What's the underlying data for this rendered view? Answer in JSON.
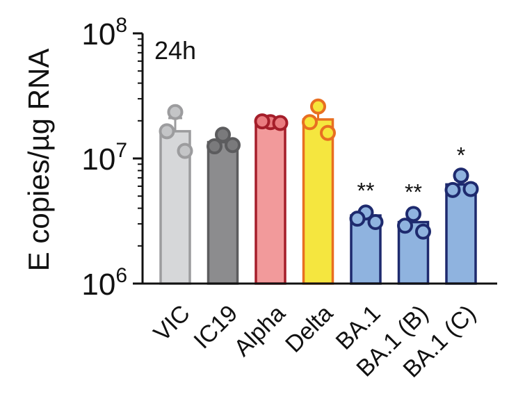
{
  "chart_data": {
    "type": "bar",
    "panel_label": "24h",
    "ylabel": "E copies/µg RNA",
    "yscale": "log",
    "ylim": [
      1000000,
      100000000
    ],
    "yticks": [
      {
        "value": 1000000,
        "base": "10",
        "exp": "6"
      },
      {
        "value": 10000000,
        "base": "10",
        "exp": "7"
      },
      {
        "value": 100000000,
        "base": "10",
        "exp": "8"
      }
    ],
    "categories": [
      "VIC",
      "IC19",
      "Alpha",
      "Delta",
      "BA.1",
      "BA.1 (B)",
      "BA.1 (C)"
    ],
    "values": [
      16500000,
      13500000,
      19500000,
      20500000,
      3500000,
      3100000,
      6200000
    ],
    "errors": [
      4500000,
      2200000,
      500000,
      5500000,
      300000,
      600000,
      600000
    ],
    "points": [
      [
        23500000,
        16500000,
        11500000
      ],
      [
        15500000,
        12500000,
        12800000
      ],
      [
        19500000,
        19800000,
        19200000
      ],
      [
        26000000,
        19500000,
        16000000
      ],
      [
        3700000,
        3300000,
        3100000
      ],
      [
        3600000,
        2900000,
        2600000
      ],
      [
        7300000,
        5600000,
        5700000
      ]
    ],
    "significance": [
      "",
      "",
      "",
      "",
      "**",
      "**",
      "*"
    ],
    "bar_colors": [
      "#d6d7d9",
      "#8c8c8e",
      "#f29a9b",
      "#f5e63f",
      "#8fb3df",
      "#8fb3df",
      "#8fb3df"
    ],
    "edge_colors": [
      "#9c9c9e",
      "#5c5c5e",
      "#a51e2a",
      "#e86f21",
      "#1e2a6e",
      "#1e2a6e",
      "#1e2a6e"
    ],
    "point_fill": [
      "#c4c5c7",
      "#7a7a7c",
      "#ea7c80",
      "#f6e53a",
      "#8fb3df",
      "#8fb3df",
      "#8fb3df"
    ]
  }
}
